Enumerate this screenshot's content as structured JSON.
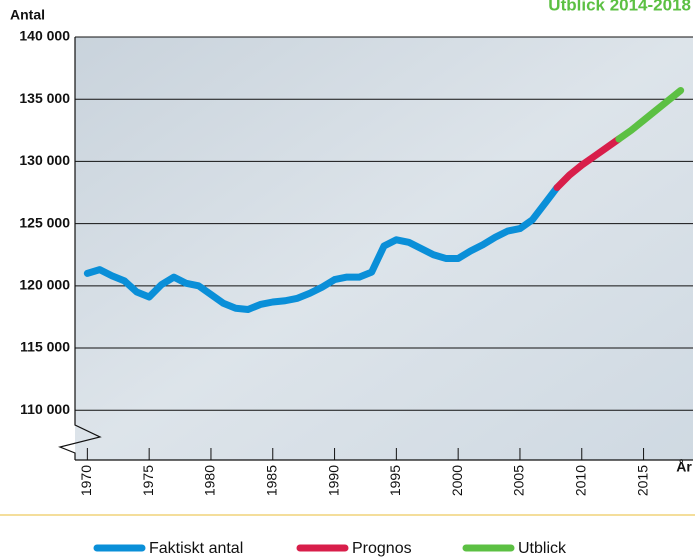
{
  "chart_data": {
    "type": "line",
    "title": "Utblick 2014-2018",
    "y_label": "Antal",
    "x_label": "År",
    "xlim": [
      1969,
      2019
    ],
    "ylim": [
      106000,
      140000
    ],
    "xticks": [
      1970,
      1975,
      1980,
      1985,
      1990,
      1995,
      2000,
      2005,
      2010,
      2015
    ],
    "yticks": [
      {
        "value": 110000,
        "label": "110 000"
      },
      {
        "value": 115000,
        "label": "115 000"
      },
      {
        "value": 120000,
        "label": "120 000"
      },
      {
        "value": 125000,
        "label": "125 000"
      },
      {
        "value": 130000,
        "label": "130 000"
      },
      {
        "value": 135000,
        "label": "135 000"
      },
      {
        "value": 140000,
        "label": "140 000"
      }
    ],
    "grid": true,
    "series": [
      {
        "name": "Faktiskt antal",
        "color": "#0a8fd8",
        "x": [
          1970,
          1971,
          1972,
          1973,
          1974,
          1975,
          1976,
          1977,
          1978,
          1979,
          1980,
          1981,
          1982,
          1983,
          1984,
          1985,
          1986,
          1987,
          1988,
          1989,
          1990,
          1991,
          1992,
          1993,
          1994,
          1995,
          1996,
          1997,
          1998,
          1999,
          2000,
          2001,
          2002,
          2003,
          2004,
          2005,
          2006,
          2007,
          2008
        ],
        "values": [
          121000,
          121300,
          120800,
          120400,
          119500,
          119100,
          120100,
          120700,
          120200,
          120000,
          119300,
          118600,
          118200,
          118100,
          118500,
          118700,
          118800,
          119000,
          119400,
          119900,
          120500,
          120700,
          120700,
          121100,
          123200,
          123700,
          123500,
          123000,
          122500,
          122200,
          122200,
          122800,
          123300,
          123900,
          124400,
          124600,
          125300,
          126600,
          127900
        ]
      },
      {
        "name": "Prognos",
        "color": "#d81e4a",
        "x": [
          2008,
          2009,
          2010,
          2011,
          2012,
          2013
        ],
        "values": [
          127900,
          128900,
          129700,
          130400,
          131100,
          131800
        ]
      },
      {
        "name": "Utblick",
        "color": "#5cc043",
        "x": [
          2013,
          2014,
          2015,
          2016,
          2017,
          2018
        ],
        "values": [
          131800,
          132500,
          133300,
          134100,
          134900,
          135700
        ]
      }
    ]
  }
}
